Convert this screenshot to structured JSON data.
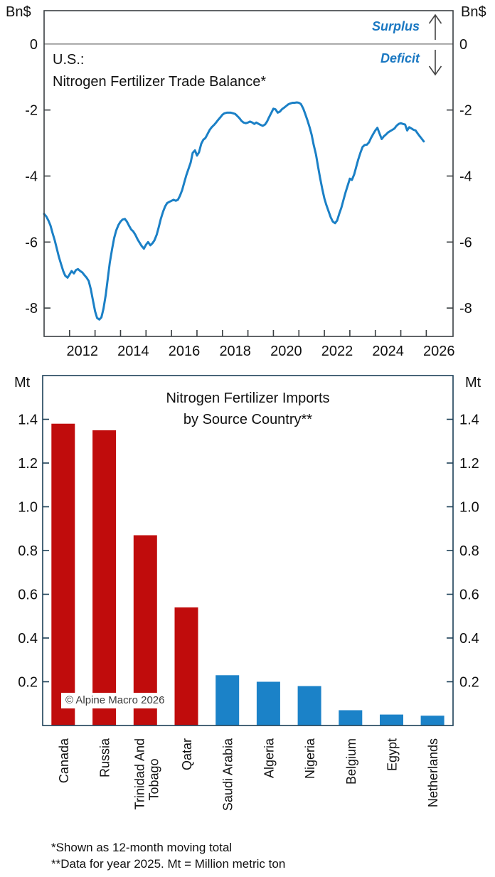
{
  "page_colors": {
    "background": "#ffffff",
    "text": "#111111"
  },
  "top_chart": {
    "unit_left": "Bn$",
    "unit_right": "Bn$",
    "title_line1": "U.S.:",
    "title_line2": "Nitrogen Fertilizer Trade Balance*",
    "surplus_label": "Surplus",
    "deficit_label": "Deficit"
  },
  "bottom_chart": {
    "unit_left": "Mt",
    "unit_right": "Mt",
    "title_line1": "Nitrogen Fertilizer Imports",
    "title_line2": "by Source Country**",
    "copyright": "© Alpine Macro 2026"
  },
  "footnotes": {
    "line1": "*Shown as 12-month moving total",
    "line2": "**Data for year 2025. Mt = Million metric ton"
  },
  "chart_data": [
    {
      "type": "line",
      "title": "U.S.: Nitrogen Fertilizer Trade Balance*",
      "ylabel": "Bn$",
      "xlim": [
        2011,
        2027.05
      ],
      "ylim": [
        -8.86,
        1.01
      ],
      "grid": false,
      "yticks": [
        0,
        -2,
        -4,
        -6,
        -8
      ],
      "ytick_labels": [
        "0",
        "-2",
        "-4",
        "-6",
        "-8"
      ],
      "xticks": [
        2012,
        2013,
        2014,
        2015,
        2016,
        2017,
        2018,
        2019,
        2020,
        2021,
        2022,
        2023,
        2024,
        2025,
        2026
      ],
      "xtick_labels": [
        "2012",
        "2014",
        "2016",
        "2018",
        "2020",
        "2022",
        "2024",
        "2026"
      ],
      "xtick_label_years": [
        2012,
        2014,
        2016,
        2018,
        2020,
        2022,
        2024,
        2026
      ],
      "annotations": [
        {
          "text": "Surplus",
          "direction": "up"
        },
        {
          "text": "Deficit",
          "direction": "down"
        }
      ],
      "line_color": "#1b80c6",
      "frame_color": "#3a3f42",
      "zero_line_color": "#8a8a8a",
      "arrow_color": "#444444",
      "series": [
        {
          "name": "U.S. nitrogen fertilizer trade balance, Bn$ (12-month moving total)",
          "points": [
            [
              2011.0,
              -5.15
            ],
            [
              2011.08,
              -5.22
            ],
            [
              2011.17,
              -5.35
            ],
            [
              2011.25,
              -5.5
            ],
            [
              2011.33,
              -5.72
            ],
            [
              2011.42,
              -5.95
            ],
            [
              2011.5,
              -6.2
            ],
            [
              2011.58,
              -6.45
            ],
            [
              2011.67,
              -6.68
            ],
            [
              2011.75,
              -6.88
            ],
            [
              2011.83,
              -7.02
            ],
            [
              2011.92,
              -7.08
            ],
            [
              2012.0,
              -6.98
            ],
            [
              2012.08,
              -6.88
            ],
            [
              2012.17,
              -6.95
            ],
            [
              2012.25,
              -6.85
            ],
            [
              2012.33,
              -6.82
            ],
            [
              2012.42,
              -6.88
            ],
            [
              2012.5,
              -6.92
            ],
            [
              2012.58,
              -7.0
            ],
            [
              2012.67,
              -7.08
            ],
            [
              2012.75,
              -7.18
            ],
            [
              2012.83,
              -7.42
            ],
            [
              2012.92,
              -7.78
            ],
            [
              2013.0,
              -8.1
            ],
            [
              2013.08,
              -8.3
            ],
            [
              2013.17,
              -8.35
            ],
            [
              2013.25,
              -8.28
            ],
            [
              2013.33,
              -8.02
            ],
            [
              2013.42,
              -7.6
            ],
            [
              2013.5,
              -7.1
            ],
            [
              2013.58,
              -6.62
            ],
            [
              2013.67,
              -6.2
            ],
            [
              2013.75,
              -5.88
            ],
            [
              2013.83,
              -5.65
            ],
            [
              2013.92,
              -5.48
            ],
            [
              2014.0,
              -5.38
            ],
            [
              2014.08,
              -5.32
            ],
            [
              2014.17,
              -5.3
            ],
            [
              2014.25,
              -5.38
            ],
            [
              2014.33,
              -5.5
            ],
            [
              2014.42,
              -5.62
            ],
            [
              2014.5,
              -5.68
            ],
            [
              2014.58,
              -5.78
            ],
            [
              2014.67,
              -5.92
            ],
            [
              2014.75,
              -6.02
            ],
            [
              2014.83,
              -6.12
            ],
            [
              2014.92,
              -6.2
            ],
            [
              2015.0,
              -6.08
            ],
            [
              2015.08,
              -6.0
            ],
            [
              2015.17,
              -6.1
            ],
            [
              2015.25,
              -6.04
            ],
            [
              2015.33,
              -5.95
            ],
            [
              2015.42,
              -5.78
            ],
            [
              2015.5,
              -5.55
            ],
            [
              2015.58,
              -5.3
            ],
            [
              2015.67,
              -5.08
            ],
            [
              2015.75,
              -4.92
            ],
            [
              2015.83,
              -4.82
            ],
            [
              2015.92,
              -4.78
            ],
            [
              2016.0,
              -4.75
            ],
            [
              2016.08,
              -4.72
            ],
            [
              2016.17,
              -4.75
            ],
            [
              2016.25,
              -4.72
            ],
            [
              2016.33,
              -4.6
            ],
            [
              2016.42,
              -4.42
            ],
            [
              2016.5,
              -4.2
            ],
            [
              2016.58,
              -3.98
            ],
            [
              2016.67,
              -3.78
            ],
            [
              2016.75,
              -3.6
            ],
            [
              2016.83,
              -3.3
            ],
            [
              2016.92,
              -3.22
            ],
            [
              2017.0,
              -3.38
            ],
            [
              2017.08,
              -3.28
            ],
            [
              2017.17,
              -3.02
            ],
            [
              2017.25,
              -2.9
            ],
            [
              2017.33,
              -2.85
            ],
            [
              2017.42,
              -2.72
            ],
            [
              2017.5,
              -2.6
            ],
            [
              2017.58,
              -2.52
            ],
            [
              2017.67,
              -2.45
            ],
            [
              2017.75,
              -2.38
            ],
            [
              2017.83,
              -2.3
            ],
            [
              2017.92,
              -2.22
            ],
            [
              2018.0,
              -2.14
            ],
            [
              2018.08,
              -2.1
            ],
            [
              2018.17,
              -2.08
            ],
            [
              2018.25,
              -2.08
            ],
            [
              2018.33,
              -2.08
            ],
            [
              2018.42,
              -2.1
            ],
            [
              2018.5,
              -2.12
            ],
            [
              2018.58,
              -2.18
            ],
            [
              2018.67,
              -2.25
            ],
            [
              2018.75,
              -2.33
            ],
            [
              2018.83,
              -2.38
            ],
            [
              2018.92,
              -2.4
            ],
            [
              2019.0,
              -2.38
            ],
            [
              2019.08,
              -2.35
            ],
            [
              2019.17,
              -2.38
            ],
            [
              2019.25,
              -2.42
            ],
            [
              2019.33,
              -2.38
            ],
            [
              2019.42,
              -2.42
            ],
            [
              2019.5,
              -2.45
            ],
            [
              2019.58,
              -2.48
            ],
            [
              2019.67,
              -2.44
            ],
            [
              2019.75,
              -2.35
            ],
            [
              2019.83,
              -2.22
            ],
            [
              2019.92,
              -2.08
            ],
            [
              2020.0,
              -1.96
            ],
            [
              2020.08,
              -1.98
            ],
            [
              2020.17,
              -2.08
            ],
            [
              2020.25,
              -2.05
            ],
            [
              2020.33,
              -1.98
            ],
            [
              2020.42,
              -1.93
            ],
            [
              2020.5,
              -1.88
            ],
            [
              2020.58,
              -1.83
            ],
            [
              2020.67,
              -1.8
            ],
            [
              2020.75,
              -1.78
            ],
            [
              2020.83,
              -1.78
            ],
            [
              2020.92,
              -1.77
            ],
            [
              2021.0,
              -1.78
            ],
            [
              2021.08,
              -1.82
            ],
            [
              2021.17,
              -1.95
            ],
            [
              2021.25,
              -2.12
            ],
            [
              2021.33,
              -2.3
            ],
            [
              2021.42,
              -2.52
            ],
            [
              2021.5,
              -2.75
            ],
            [
              2021.58,
              -3.05
            ],
            [
              2021.67,
              -3.35
            ],
            [
              2021.75,
              -3.7
            ],
            [
              2021.83,
              -4.05
            ],
            [
              2021.92,
              -4.4
            ],
            [
              2022.0,
              -4.68
            ],
            [
              2022.08,
              -4.88
            ],
            [
              2022.17,
              -5.08
            ],
            [
              2022.25,
              -5.25
            ],
            [
              2022.33,
              -5.38
            ],
            [
              2022.42,
              -5.43
            ],
            [
              2022.5,
              -5.35
            ],
            [
              2022.58,
              -5.15
            ],
            [
              2022.67,
              -4.95
            ],
            [
              2022.75,
              -4.72
            ],
            [
              2022.83,
              -4.5
            ],
            [
              2022.92,
              -4.28
            ],
            [
              2023.0,
              -4.08
            ],
            [
              2023.08,
              -4.12
            ],
            [
              2023.17,
              -3.95
            ],
            [
              2023.25,
              -3.72
            ],
            [
              2023.33,
              -3.5
            ],
            [
              2023.42,
              -3.28
            ],
            [
              2023.5,
              -3.12
            ],
            [
              2023.58,
              -3.06
            ],
            [
              2023.67,
              -3.05
            ],
            [
              2023.75,
              -2.98
            ],
            [
              2023.83,
              -2.85
            ],
            [
              2023.92,
              -2.72
            ],
            [
              2024.0,
              -2.62
            ],
            [
              2024.08,
              -2.54
            ],
            [
              2024.17,
              -2.72
            ],
            [
              2024.25,
              -2.88
            ],
            [
              2024.33,
              -2.8
            ],
            [
              2024.42,
              -2.74
            ],
            [
              2024.5,
              -2.68
            ],
            [
              2024.58,
              -2.64
            ],
            [
              2024.67,
              -2.6
            ],
            [
              2024.75,
              -2.56
            ],
            [
              2024.83,
              -2.48
            ],
            [
              2024.92,
              -2.42
            ],
            [
              2025.0,
              -2.4
            ],
            [
              2025.08,
              -2.42
            ],
            [
              2025.17,
              -2.44
            ],
            [
              2025.25,
              -2.62
            ],
            [
              2025.33,
              -2.52
            ],
            [
              2025.42,
              -2.56
            ],
            [
              2025.5,
              -2.6
            ],
            [
              2025.58,
              -2.62
            ],
            [
              2025.67,
              -2.72
            ],
            [
              2025.75,
              -2.8
            ],
            [
              2025.83,
              -2.88
            ],
            [
              2025.9,
              -2.95
            ]
          ]
        }
      ]
    },
    {
      "type": "bar",
      "title": "Nitrogen Fertilizer Imports by Source Country**",
      "ylabel": "Mt",
      "ylim": [
        0,
        1.6
      ],
      "grid": false,
      "yticks": [
        0.2,
        0.4,
        0.6,
        0.8,
        1.0,
        1.2,
        1.4
      ],
      "ytick_labels": [
        "0.2",
        "0.4",
        "0.6",
        "0.8",
        "1.0",
        "1.2",
        "1.4"
      ],
      "categories": [
        "Canada",
        "Russia",
        "Trinidad And Tobago",
        "Qatar",
        "Saudi Arabia",
        "Algeria",
        "Nigeria",
        "Belgium",
        "Egypt",
        "Netherlands"
      ],
      "category_display": [
        [
          "Canada"
        ],
        [
          "Russia"
        ],
        [
          "Trinidad And",
          "Tobago"
        ],
        [
          "Qatar"
        ],
        [
          "Saudi Arabia"
        ],
        [
          "Algeria"
        ],
        [
          "Nigeria"
        ],
        [
          "Belgium"
        ],
        [
          "Egypt"
        ],
        [
          "Netherlands"
        ]
      ],
      "values": [
        1.38,
        1.35,
        0.87,
        0.54,
        0.23,
        0.2,
        0.18,
        0.07,
        0.05,
        0.045
      ],
      "bar_colors": [
        "#c00c0c",
        "#c00c0c",
        "#c00c0c",
        "#c00c0c",
        "#1b82c8",
        "#1b82c8",
        "#1b82c8",
        "#1b82c8",
        "#1b82c8",
        "#1b82c8"
      ],
      "frame_color": "#1c3f57"
    }
  ]
}
